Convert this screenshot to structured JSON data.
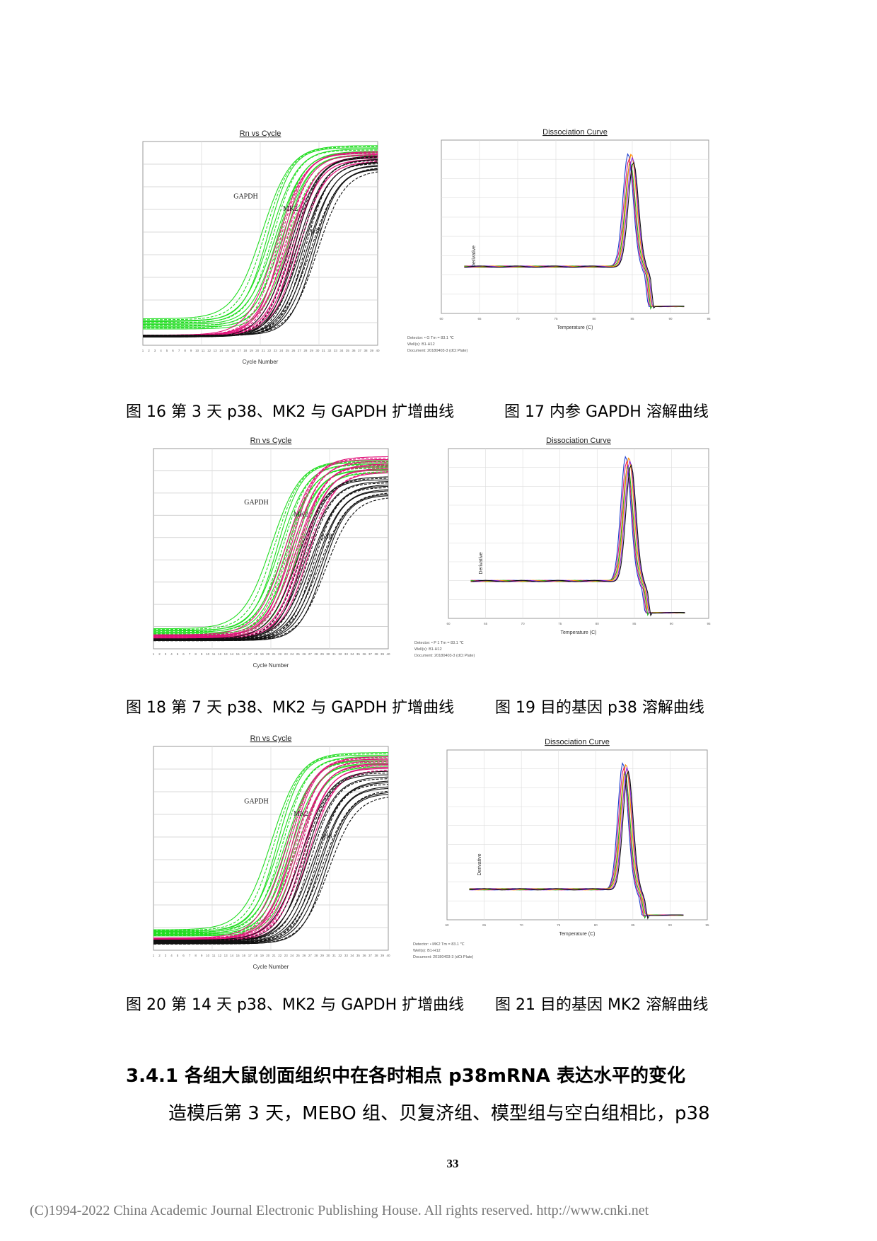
{
  "chart_data": [
    {
      "type": "line",
      "figure_number": "16",
      "title": "Rn vs Cycle",
      "xlabel": "Cycle Number",
      "ylabel": "",
      "xlim": [
        1,
        40
      ],
      "annotations": [
        "GAPDH",
        "MK2",
        "p38"
      ],
      "series": [
        {
          "name": "GAPDH",
          "color": "#22dd22",
          "count": 12,
          "midpoints": [
            20.8,
            21.3,
            21.8,
            22.2,
            22.6,
            23.0,
            23.3,
            23.6,
            24.0,
            24.4,
            24.8,
            25.2
          ],
          "base": [
            0.13,
            0.08
          ],
          "top": [
            0.98,
            0.92
          ]
        },
        {
          "name": "MK2",
          "color": "#e0137a",
          "count": 12,
          "midpoints": [
            23.2,
            23.6,
            24.0,
            24.3,
            24.6,
            24.9,
            25.2,
            25.5,
            25.8,
            26.1,
            26.5,
            26.9
          ],
          "base": [
            0.05,
            0.05
          ],
          "top": [
            0.95,
            0.9
          ]
        },
        {
          "name": "p38",
          "color": "#111111",
          "count": 14,
          "midpoints": [
            25.4,
            25.8,
            26.2,
            26.6,
            27.0,
            27.3,
            27.6,
            27.9,
            28.2,
            28.5,
            28.8,
            29.1,
            29.5,
            29.9
          ],
          "base": [
            0.04,
            0.05
          ],
          "top": [
            0.93,
            0.86
          ]
        }
      ]
    },
    {
      "type": "line",
      "figure_number": "17",
      "title": "Dissociation Curve",
      "xlabel": "Temperature (C)",
      "ylabel": "Derivative",
      "xlim": [
        60,
        95
      ],
      "baseline": 0.27,
      "peak_x": 84.8,
      "peak_height": 0.92,
      "series_colors": [
        "#1f3fd0",
        "#e0137a",
        "#22aa22",
        "#ff8c00",
        "#8a2be2",
        "#111111"
      ],
      "footer_lines": [
        "Detector: • G Tm = 83.1 ℃",
        "Well(s): B1-H12",
        "Document: 20180403-3 (dCt Plate)"
      ]
    },
    {
      "type": "line",
      "figure_number": "18",
      "title": "Rn vs Cycle",
      "xlabel": "Cycle Number",
      "ylabel": "",
      "xlim": [
        1,
        40
      ],
      "annotations": [
        "GAPDH",
        "MK2",
        "p38"
      ],
      "series": [
        {
          "name": "GAPDH",
          "color": "#22dd22",
          "count": 12,
          "midpoints": [
            20.6,
            21.1,
            21.6,
            22.0,
            22.4,
            22.8,
            23.1,
            23.4,
            23.8,
            24.2,
            24.6,
            25.0
          ],
          "base": [
            0.1,
            0.06
          ],
          "top": [
            0.94,
            0.88
          ]
        },
        {
          "name": "MK2",
          "color": "#e0137a",
          "count": 12,
          "midpoints": [
            23.0,
            23.4,
            23.8,
            24.1,
            24.4,
            24.7,
            25.0,
            25.3,
            25.6,
            25.9,
            26.3,
            26.7
          ],
          "base": [
            0.07,
            0.05
          ],
          "top": [
            0.96,
            0.88
          ]
        },
        {
          "name": "p38",
          "color": "#111111",
          "count": 14,
          "midpoints": [
            25.0,
            25.4,
            25.8,
            26.2,
            26.6,
            27.0,
            27.3,
            27.6,
            27.9,
            28.2,
            28.5,
            28.8,
            29.2,
            29.6
          ],
          "base": [
            0.05,
            0.04
          ],
          "top": [
            0.86,
            0.76
          ]
        }
      ]
    },
    {
      "type": "line",
      "figure_number": "19",
      "title": "Dissociation Curve",
      "xlabel": "Temperature (C)",
      "ylabel": "Derivative",
      "xlim": [
        60,
        95
      ],
      "baseline": 0.22,
      "peak_x": 84.2,
      "peak_height": 0.95,
      "series_colors": [
        "#1f3fd0",
        "#e0137a",
        "#22aa22",
        "#ff8c00",
        "#8a2be2",
        "#111111"
      ],
      "footer_lines": [
        "Detector: • P 1 Tm = 83.1 ℃",
        "Well(s): B1-H12",
        "Document: 20180403-3 (dCt Plate)"
      ]
    },
    {
      "type": "line",
      "figure_number": "20",
      "title": "Rn vs Cycle",
      "xlabel": "Cycle Number",
      "ylabel": "",
      "xlim": [
        1,
        40
      ],
      "annotations": [
        "GAPDH",
        "MK2",
        "p38"
      ],
      "series": [
        {
          "name": "GAPDH",
          "color": "#22dd22",
          "count": 12,
          "midpoints": [
            20.6,
            21.1,
            21.6,
            22.0,
            22.4,
            22.8,
            23.1,
            23.4,
            23.8,
            24.2,
            24.6,
            25.0
          ],
          "base": [
            0.1,
            0.07
          ],
          "top": [
            0.97,
            0.9
          ]
        },
        {
          "name": "MK2",
          "color": "#e0137a",
          "count": 12,
          "midpoints": [
            23.0,
            23.4,
            23.8,
            24.1,
            24.4,
            24.7,
            25.0,
            25.3,
            25.6,
            25.9,
            26.3,
            26.7
          ],
          "base": [
            0.06,
            0.05
          ],
          "top": [
            0.95,
            0.88
          ]
        },
        {
          "name": "p38",
          "color": "#111111",
          "count": 14,
          "midpoints": [
            25.5,
            25.9,
            26.3,
            26.7,
            27.1,
            27.5,
            27.8,
            28.1,
            28.4,
            28.7,
            29.0,
            29.3,
            29.7,
            30.1
          ],
          "base": [
            0.05,
            0.03
          ],
          "top": [
            0.88,
            0.76
          ]
        }
      ]
    },
    {
      "type": "line",
      "figure_number": "21",
      "title": "Dissociation Curve",
      "xlabel": "Temperature (C)",
      "ylabel": "Derivative",
      "xlim": [
        60,
        95
      ],
      "baseline": 0.18,
      "peak_x": 84.0,
      "peak_height": 0.92,
      "series_colors": [
        "#1f3fd0",
        "#e0137a",
        "#22aa22",
        "#ff8c00",
        "#8a2be2",
        "#111111"
      ],
      "footer_lines": [
        "Detector: • MK2 Tm = 83.1 ℃",
        "Well(s): B1-H12",
        "Document: 20180403-3 (dCt Plate)"
      ]
    }
  ],
  "captions": {
    "fig16": "图 16  第 3 天 p38、MK2 与 GAPDH 扩增曲线",
    "fig17": "图 17  内参 GAPDH 溶解曲线",
    "fig18": "图 18  第 7 天 p38、MK2 与 GAPDH 扩增曲线",
    "fig19": "图 19  目的基因 p38 溶解曲线",
    "fig20": "图 20  第 14 天 p38、MK2 与 GAPDH 扩增曲线",
    "fig21": "图 21  目的基因 MK2 溶解曲线"
  },
  "section_heading": "3.4.1  各组大鼠创面组织中在各时相点 p38mRNA 表达水平的变化",
  "body_text": "造模后第  3  天，MEBO  组、贝复济组、模型组与空白组相比，p38",
  "page_number": "33",
  "footer": "(C)1994-2022 China Academic Journal Electronic Publishing House. All rights reserved.     http://www.cnki.net"
}
